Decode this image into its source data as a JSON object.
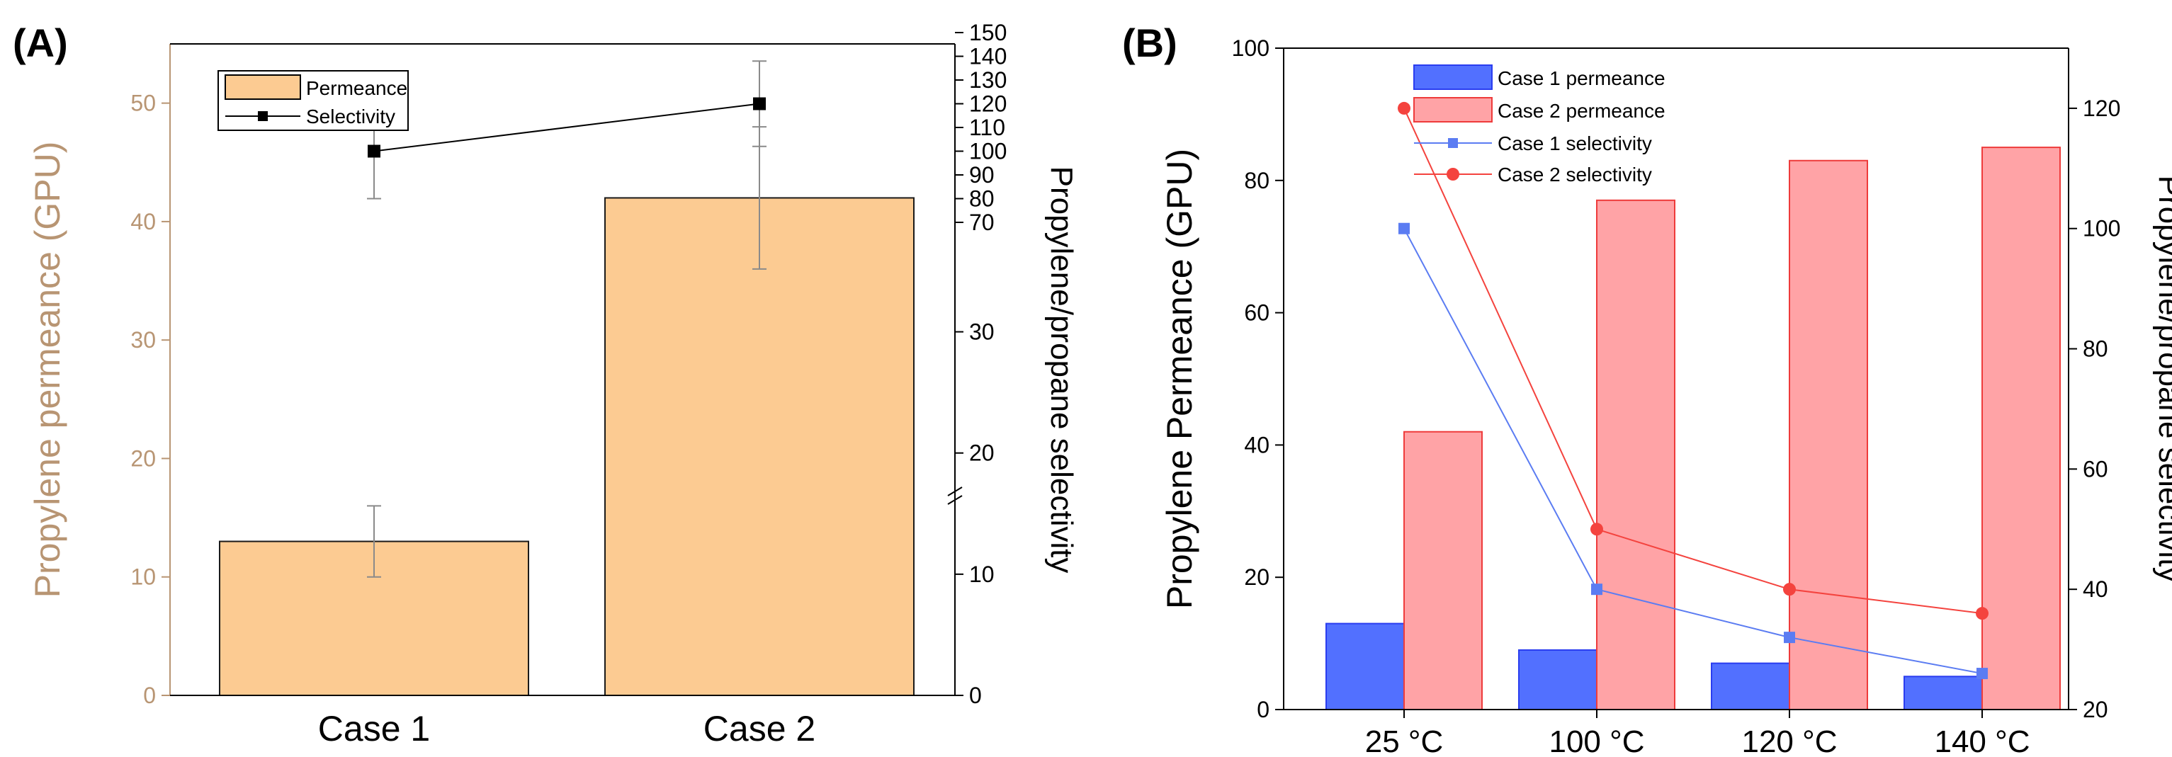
{
  "colors": {
    "bar_a": "#fccb92",
    "bar_a_edge": "#1a1a1a",
    "left_axis_a": "#b89573",
    "case1_fill": "#5270ff",
    "case1_edge": "#2a3df0",
    "case2_fill": "#ffa3a6",
    "case2_edge": "#ee3b3b",
    "case1_line": "#5b7cf2",
    "case2_line": "#f4433e",
    "black": "#000000",
    "errorbar": "#8a8a8a"
  },
  "chart_data": [
    {
      "panel_label": "(A)",
      "type": "bar",
      "categories": [
        "Case 1",
        "Case 2"
      ],
      "series": [
        {
          "name": "Permeance",
          "type": "bar",
          "axis": "left",
          "values": [
            13,
            42
          ],
          "errors": [
            3,
            6
          ]
        },
        {
          "name": "Selectivity",
          "type": "line",
          "axis": "right",
          "values": [
            100,
            120
          ],
          "errors": [
            20,
            18
          ]
        }
      ],
      "ylabel": "Propylene permeance (GPU)",
      "y2label": "Propylene/propane selectivity",
      "ylim": [
        0,
        55
      ],
      "yticks": [
        0,
        10,
        20,
        30,
        40,
        50
      ],
      "y2_ticks_lower": [
        0,
        10,
        20,
        30
      ],
      "y2_ticks_upper": [
        70,
        80,
        90,
        100,
        110,
        120,
        130,
        140,
        150
      ],
      "y2_axis_break": "between 30 and 70",
      "legend": [
        "Permeance",
        "Selectivity"
      ],
      "legend_position": "top-left"
    },
    {
      "panel_label": "(B)",
      "type": "bar",
      "categories": [
        "25 °C",
        "100 °C",
        "120 °C",
        "140 °C"
      ],
      "series": [
        {
          "name": "Case 1 permeance",
          "type": "bar",
          "axis": "left",
          "values": [
            13,
            9,
            7,
            5
          ]
        },
        {
          "name": "Case 2 permeance",
          "type": "bar",
          "axis": "left",
          "values": [
            42,
            77,
            83,
            85
          ]
        },
        {
          "name": "Case 1 selectivity",
          "type": "line",
          "axis": "right",
          "values": [
            100,
            40,
            32,
            26
          ]
        },
        {
          "name": "Case 2 selectivity",
          "type": "line",
          "axis": "right",
          "values": [
            120,
            50,
            40,
            36
          ]
        }
      ],
      "ylabel": "Propylene Permeance (GPU)",
      "y2label": "Propylene/propane selectivity",
      "ylim": [
        0,
        100
      ],
      "yticks": [
        0,
        20,
        40,
        60,
        80,
        100
      ],
      "y2lim": [
        20,
        130
      ],
      "y2ticks": [
        20,
        40,
        60,
        80,
        100,
        120
      ],
      "legend_position": "top-left"
    }
  ]
}
